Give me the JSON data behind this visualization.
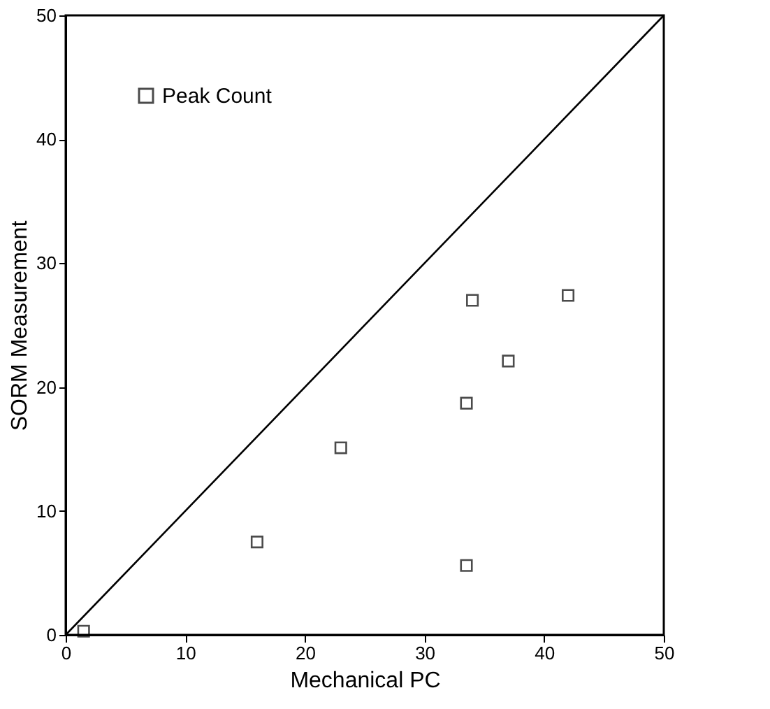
{
  "chart_data": {
    "type": "scatter",
    "xlabel": "Mechanical PC",
    "ylabel": "SORM Measurement",
    "xlim": [
      0,
      50
    ],
    "ylim": [
      0,
      50
    ],
    "xticks": [
      0,
      10,
      20,
      30,
      40,
      50
    ],
    "yticks": [
      0,
      10,
      20,
      30,
      40,
      50
    ],
    "grid": false,
    "legend": "top left",
    "series": [
      {
        "name": "Peak Count",
        "color": "#000000",
        "marker": "square",
        "x": [
          1.5,
          16,
          23,
          33.5,
          33.5,
          34,
          37,
          42
        ],
        "values": [
          0.3,
          7.5,
          15.1,
          18.7,
          5.6,
          27,
          22.1,
          27.4
        ]
      },
      {
        "type": "line",
        "color": "#000000",
        "line_style": "solid",
        "marker": "none",
        "x": [
          0,
          50
        ],
        "values": [
          0,
          50
        ]
      }
    ]
  }
}
